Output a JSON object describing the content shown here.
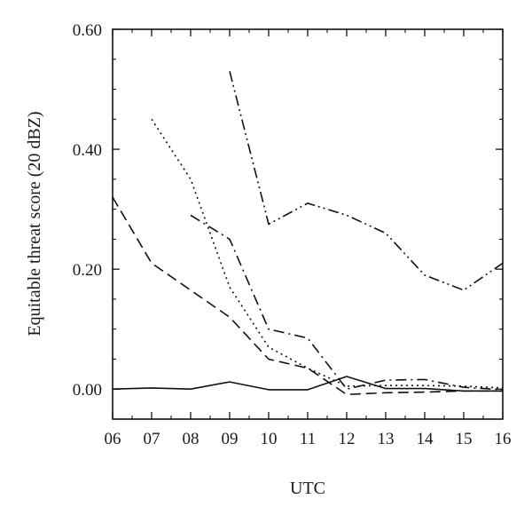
{
  "chart_data": {
    "type": "line",
    "xlabel": "UTC",
    "ylabel": "Equitable threat score (20 dBZ)",
    "x_ticks": [
      "06",
      "07",
      "08",
      "09",
      "10",
      "11",
      "12",
      "13",
      "14",
      "15",
      "16"
    ],
    "y_ticks": [
      "0.00",
      "0.20",
      "0.40",
      "0.60"
    ],
    "xlim": [
      6,
      16
    ],
    "ylim": [
      -0.05,
      0.6
    ],
    "grid": false,
    "legend": "none",
    "series": [
      {
        "style": "solid",
        "x": [
          6,
          7,
          8,
          9,
          10,
          11,
          12,
          13,
          14,
          15,
          16
        ],
        "y": [
          0.0,
          0.002,
          0.0,
          0.012,
          -0.001,
          -0.001,
          0.021,
          0.001,
          0.001,
          -0.003,
          -0.003
        ]
      },
      {
        "style": "dashed",
        "x": [
          6,
          7,
          8,
          9,
          10,
          11,
          12,
          13,
          14,
          15,
          16
        ],
        "y": [
          0.32,
          0.21,
          0.165,
          0.12,
          0.05,
          0.035,
          -0.009,
          -0.006,
          -0.005,
          -0.003,
          -0.003
        ]
      },
      {
        "style": "dotted",
        "x": [
          7,
          8,
          9,
          10,
          11,
          12,
          13,
          14,
          15,
          16
        ],
        "y": [
          0.45,
          0.35,
          0.17,
          0.07,
          0.035,
          0.005,
          0.006,
          0.006,
          0.005,
          0.002
        ]
      },
      {
        "style": "dash-dot",
        "x": [
          8,
          9,
          10,
          11,
          12,
          13,
          14,
          15,
          16
        ],
        "y": [
          0.29,
          0.25,
          0.1,
          0.085,
          0.0,
          0.015,
          0.016,
          0.003,
          -0.001
        ]
      },
      {
        "style": "dash-dot-dot",
        "x": [
          9,
          10,
          11,
          12,
          13,
          14,
          15,
          16
        ],
        "y": [
          0.53,
          0.275,
          0.31,
          0.29,
          0.26,
          0.19,
          0.165,
          0.21
        ]
      }
    ]
  }
}
